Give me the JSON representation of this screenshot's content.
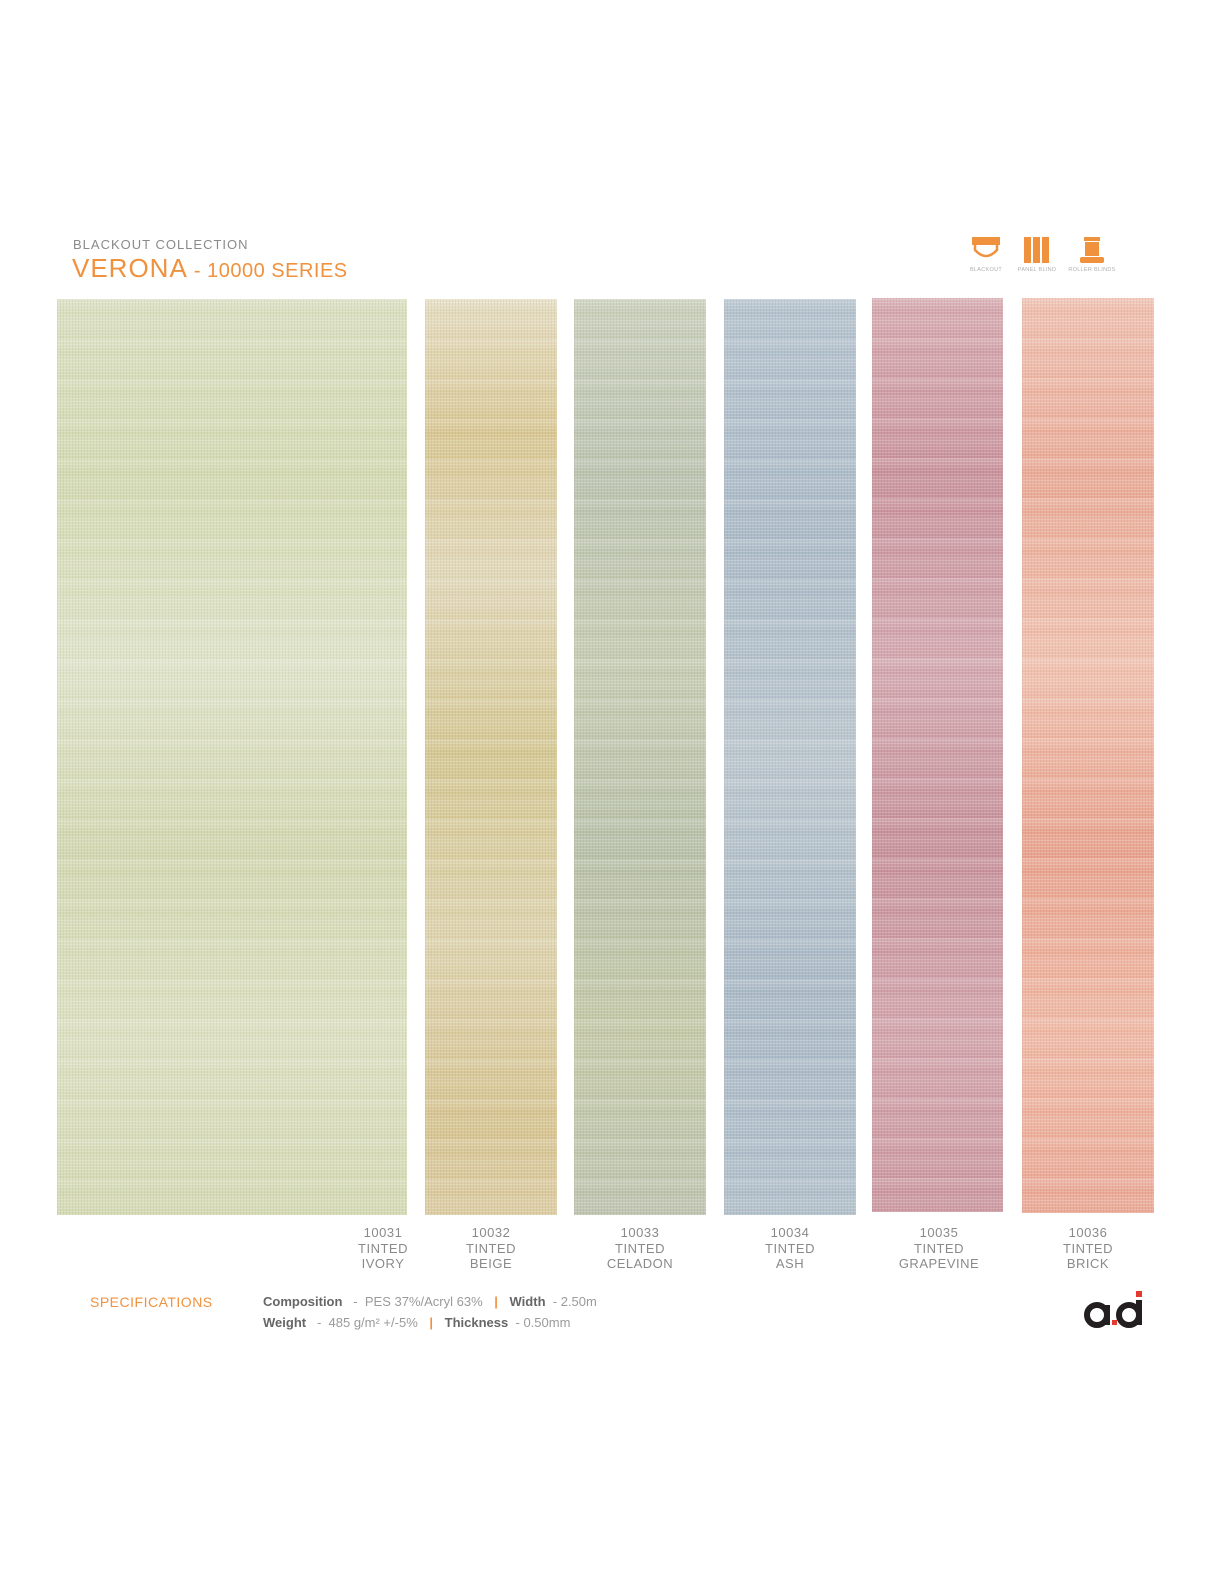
{
  "header": {
    "collection": "BLACKOUT  COLLECTION",
    "title_main": "VERONA",
    "title_series": " - 10000 SERIES"
  },
  "icons": [
    {
      "name": "blackout-icon",
      "label": "BLACKOUT"
    },
    {
      "name": "panel-blind-icon",
      "label": "PANEL BLIND"
    },
    {
      "name": "roller-blinds-icon",
      "label": "ROLLER BLINDS"
    }
  ],
  "swatches": [
    {
      "code": "10031",
      "line1": "TINTED",
      "line2": "IVORY"
    },
    {
      "code": "10032",
      "line1": "TINTED",
      "line2": "BEIGE"
    },
    {
      "code": "10033",
      "line1": "TINTED",
      "line2": "CELADON"
    },
    {
      "code": "10034",
      "line1": "TINTED",
      "line2": "ASH"
    },
    {
      "code": "10035",
      "line1": "TINTED",
      "line2": "GRAPEVINE"
    },
    {
      "code": "10036",
      "line1": "TINTED",
      "line2": "BRICK"
    }
  ],
  "specifications": {
    "heading": "SPECIFICATIONS",
    "composition_label": "Composition",
    "composition_value": "PES 37%/Acryl 63%",
    "width_label": "Width",
    "width_value": "2.50m",
    "weight_label": "Weight",
    "weight_value": "485 g/m² +/-5%",
    "thickness_label": "Thickness",
    "thickness_value": "0.50mm",
    "dash": "-",
    "separator": "|"
  },
  "colors": {
    "accent": "#f0913e",
    "text_gray": "#8a8a8a",
    "logo_dark": "#231f20",
    "logo_red": "#e53a2f",
    "logo_orange": "#f0913e"
  }
}
